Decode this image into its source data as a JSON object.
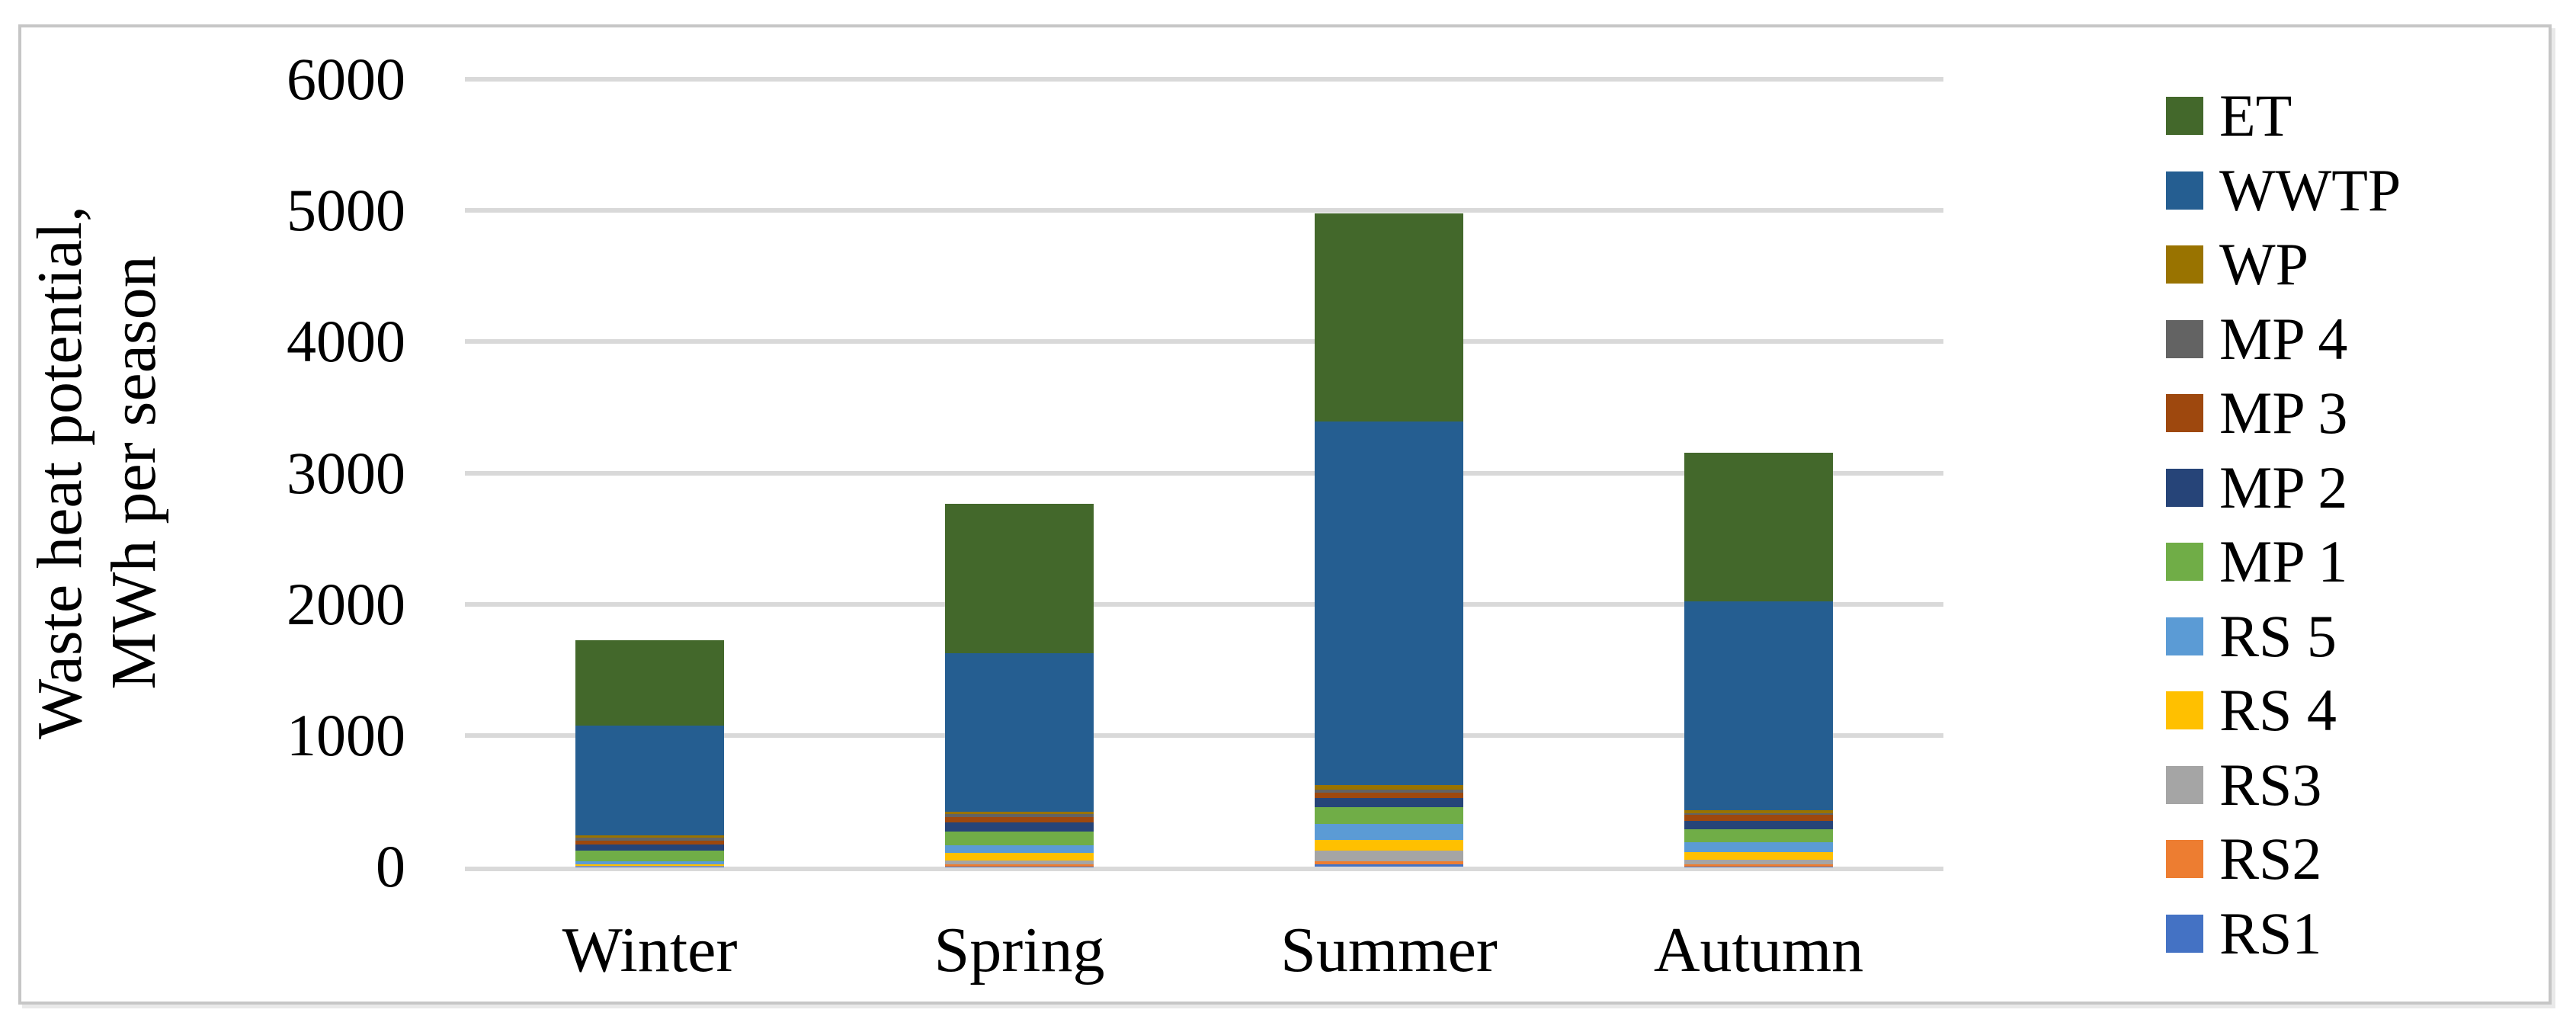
{
  "figure": {
    "background": "#FFFFFF",
    "border_color": "#C6C6C6"
  },
  "chart_data": {
    "type": "bar",
    "stacked": true,
    "title": "",
    "ylabel_line1": "Waste heat potential,",
    "ylabel_line2": "MWh per season",
    "xlabel": "",
    "categories": [
      "Winter",
      "Spring",
      "Summer",
      "Autumn"
    ],
    "series": [
      {
        "name": "RS1",
        "color": "#4472C4",
        "values": [
          1,
          2,
          15,
          2
        ]
      },
      {
        "name": "RS2",
        "color": "#ED7D31",
        "values": [
          1,
          16,
          25,
          17
        ]
      },
      {
        "name": "RS3",
        "color": "#A5A5A5",
        "values": [
          1,
          27,
          81,
          33
        ]
      },
      {
        "name": "RS 4",
        "color": "#FFC000",
        "values": [
          12,
          57,
          83,
          58
        ]
      },
      {
        "name": "RS 5",
        "color": "#5B9BD5",
        "values": [
          25,
          62,
          122,
          74
        ]
      },
      {
        "name": "MP 1",
        "color": "#70AD47",
        "values": [
          83,
          102,
          126,
          103
        ]
      },
      {
        "name": "MP 2",
        "color": "#264478",
        "values": [
          43,
          70,
          71,
          64
        ]
      },
      {
        "name": "MP 3",
        "color": "#9E480E",
        "values": [
          33,
          40,
          43,
          42
        ]
      },
      {
        "name": "MP 4",
        "color": "#636363",
        "values": [
          21,
          24,
          21,
          16
        ]
      },
      {
        "name": "WP",
        "color": "#997300",
        "values": [
          21,
          19,
          35,
          23
        ]
      },
      {
        "name": "WWTP",
        "color": "#255E91",
        "values": [
          834,
          1209,
          2772,
          1589
        ]
      },
      {
        "name": "ET",
        "color": "#43682B",
        "values": [
          650,
          1137,
          1584,
          1131
        ]
      }
    ],
    "totals": [
      1725,
      2765,
      4978,
      3152
    ],
    "legend_order_top_to_bottom": [
      "ET",
      "WWTP",
      "WP",
      "MP 4",
      "MP 3",
      "MP 2",
      "MP 1",
      "RS 5",
      "RS 4",
      "RS3",
      "RS2",
      "RS1"
    ],
    "ylim": [
      0,
      6000
    ],
    "ytick_step": 1000,
    "yticks": [
      "0",
      "1000",
      "2000",
      "3000",
      "4000",
      "5000",
      "6000"
    ],
    "grid": true,
    "gridline_color": "#D9D9D9",
    "legend_position": "right",
    "text_color": "#000000"
  }
}
